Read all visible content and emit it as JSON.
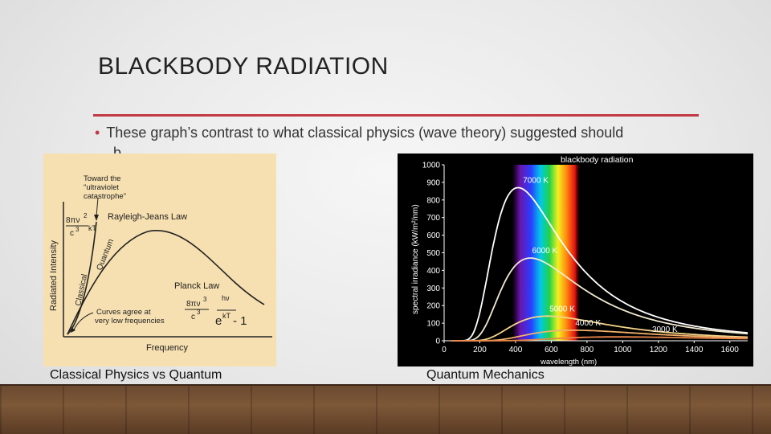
{
  "slide": {
    "title": "BLACKBODY RADIATION",
    "bullet": "These graph’s contrast to what classical physics (wave theory) suggested should",
    "bullet_cut_char": "b",
    "accent_color": "#c23a45"
  },
  "left_figure": {
    "caption": "Classical Physics vs Quantum",
    "annotation_uv_line1": "Toward the",
    "annotation_uv_line2": "\"ultraviolet",
    "annotation_uv_line3": "catastrophe\"",
    "rayleigh_label": "Rayleigh-Jeans Law",
    "quantum_label": "Quantum",
    "classical_label": "Classical",
    "planck_label": "Planck Law",
    "curves_agree_line1": "Curves agree at",
    "curves_agree_line2": "very low frequencies",
    "ylabel": "Radiated Intensity",
    "xlabel": "Frequency",
    "rj_num": "8πν",
    "rj_exp": "2",
    "rj_den": "c",
    "rj_den_exp": "3",
    "rj_kt": "kT",
    "planck_num": "8πν",
    "planck_num_exp": "3",
    "planck_den": "c",
    "planck_den_exp": "3",
    "planck_frac_num": "1",
    "planck_e": "e",
    "planck_hv": "hν",
    "planck_kt": "kT",
    "planck_minus": "- 1",
    "background_color": "#f6dfb0"
  },
  "right_figure": {
    "caption": "Quantum Mechanics",
    "chart_data": {
      "type": "line",
      "title": "blackbody radiation",
      "xlabel": "wavelength (nm)",
      "ylabel": "spectral irradiance (kW/m²/nm)",
      "xlim": [
        0,
        1700
      ],
      "ylim": [
        0,
        1000
      ],
      "x_ticks": [
        0,
        200,
        400,
        600,
        800,
        1000,
        1200,
        1400,
        1600
      ],
      "y_ticks": [
        0,
        100,
        200,
        300,
        400,
        500,
        600,
        700,
        800,
        900,
        1000
      ],
      "series": [
        {
          "name": "7000 K",
          "peak_x": 414,
          "peak_y": 870,
          "color": "#ffffff"
        },
        {
          "name": "6000 K",
          "peak_x": 483,
          "peak_y": 470,
          "color": "#f2ead0"
        },
        {
          "name": "5000 K",
          "peak_x": 580,
          "peak_y": 140,
          "color": "#f5d58a"
        },
        {
          "name": "4000 K",
          "peak_x": 725,
          "peak_y": 60,
          "color": "#f3b16a"
        },
        {
          "name": "3000 K",
          "peak_x": 966,
          "peak_y": 22,
          "color": "#e8854a"
        }
      ],
      "background_color": "#000000"
    }
  }
}
